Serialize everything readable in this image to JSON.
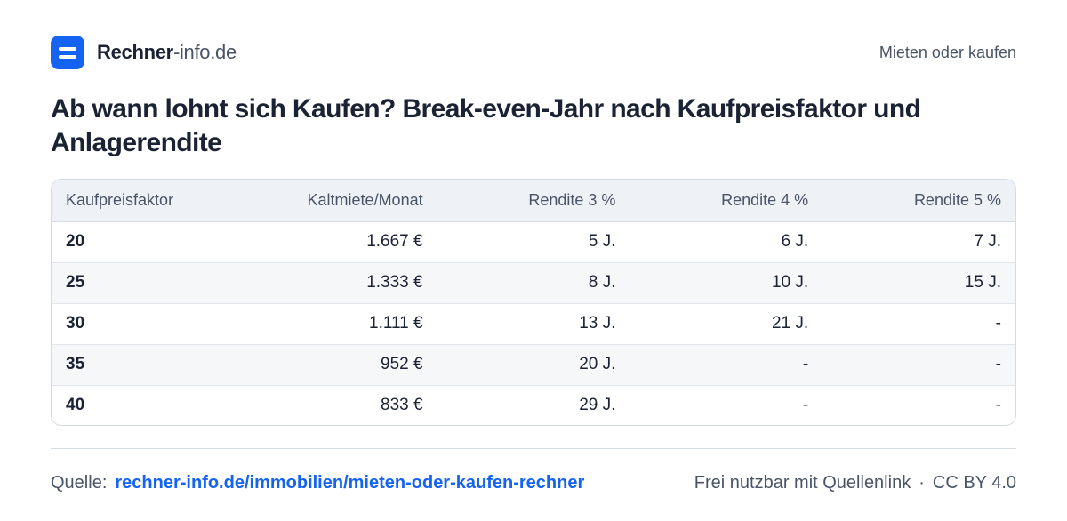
{
  "brand": {
    "name_bold": "Rechner",
    "name_light": "-info.de"
  },
  "header": {
    "link_label": "Mieten oder kaufen"
  },
  "title": "Ab wann lohnt sich Kaufen? Break-even-Jahr nach Kaufpreisfaktor und Anlagerendite",
  "table": {
    "headers": [
      "Kaufpreisfaktor",
      "Kaltmiete/Monat",
      "Rendite 3 %",
      "Rendite 4 %",
      "Rendite 5 %"
    ],
    "rows": [
      [
        "20",
        "1.667 €",
        "5 J.",
        "6 J.",
        "7 J."
      ],
      [
        "25",
        "1.333 €",
        "8 J.",
        "10 J.",
        "15 J."
      ],
      [
        "30",
        "1.111 €",
        "13 J.",
        "21 J.",
        "-"
      ],
      [
        "35",
        "952 €",
        "20 J.",
        "-",
        "-"
      ],
      [
        "40",
        "833 €",
        "29 J.",
        "-",
        "-"
      ]
    ]
  },
  "footer": {
    "source_label": "Quelle:",
    "source_link": "rechner-info.de/immobilien/mieten-oder-kaufen-rechner",
    "license_text": "Frei nutzbar mit Quellenlink",
    "separator": "·",
    "license_name": "CC BY 4.0"
  },
  "colors": {
    "accent": "#1463f3",
    "text": "#1a2233",
    "muted": "#4a5467",
    "header_bg": "#eef1f5"
  },
  "icons": {
    "logo": "menu-logo-icon"
  }
}
